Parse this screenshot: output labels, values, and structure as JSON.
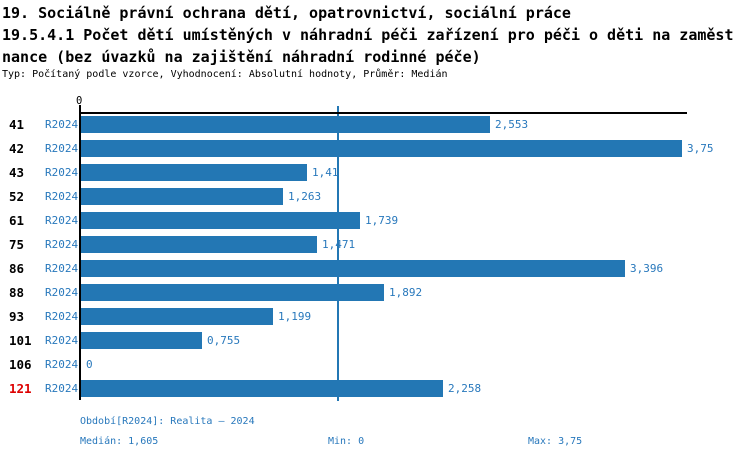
{
  "header": {
    "line1": "19. Sociálně právní ochrana dětí, opatrovnictví, sociální práce",
    "line2": "19.5.4.1 Počet dětí umístěných v náhradní péči zařízení pro péči o děti na zaměst",
    "line3": "nance (bez úvazků na zajištění náhradní rodinné péče)",
    "meta": "Typ: Počítaný podle vzorce, Vyhodnocení: Absolutní hodnoty, Průměr: Medián"
  },
  "chart_data": {
    "type": "bar",
    "orientation": "horizontal",
    "title": "19.5.4.1 Počet dětí umístěných v náhradní péči zařízení pro péči o děti na zaměstnance (bez úvazků na zajištění náhradní rodinné péče)",
    "categories": [
      "41",
      "42",
      "43",
      "52",
      "61",
      "75",
      "86",
      "88",
      "93",
      "101",
      "106",
      "121"
    ],
    "series_period_label": "R2024",
    "values": [
      2.553,
      3.75,
      1.41,
      1.263,
      1.739,
      1.471,
      3.396,
      1.892,
      1.199,
      0.755,
      0,
      2.258
    ],
    "value_labels": [
      "2,553",
      "3,75",
      "1,41",
      "1,263",
      "1,739",
      "1,471",
      "3,396",
      "1,892",
      "1,199",
      "0,755",
      "0",
      "2,258"
    ],
    "highlighted_category": "121",
    "xlim": [
      0,
      3.75
    ],
    "x_zero_tick_label": "0",
    "median_value": 1.605,
    "median_line_shown": true,
    "grid": false,
    "legend": false
  },
  "footer": {
    "period": "Období[R2024]: Realita – 2024",
    "median": "Medián: 1,605",
    "min": "Min: 0",
    "max": "Max: 3,75"
  },
  "colors": {
    "bar": "#2377B4",
    "blue_text": "#2878BC",
    "highlight_red": "#DD0000",
    "axis_black": "#000000"
  }
}
